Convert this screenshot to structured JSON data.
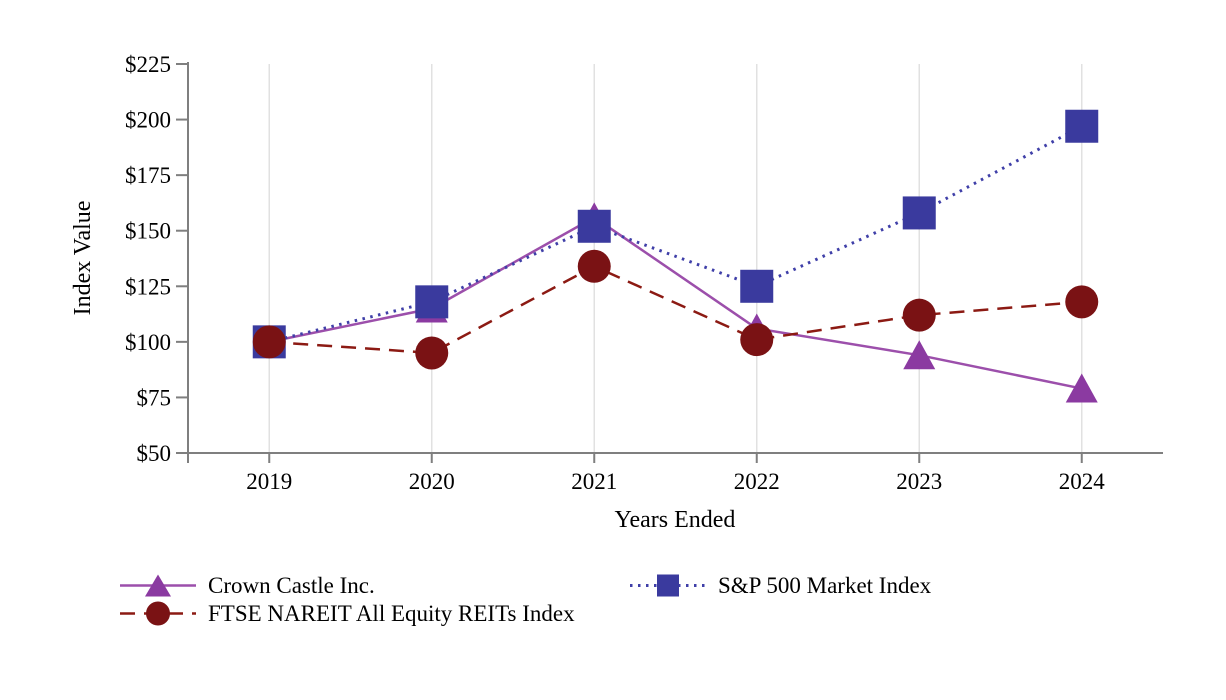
{
  "chart_data": {
    "type": "line",
    "title": "",
    "xlabel": "Years Ended",
    "ylabel": "Index Value",
    "categories": [
      "2019",
      "2020",
      "2021",
      "2022",
      "2023",
      "2024"
    ],
    "series": [
      {
        "name": "Crown Castle Inc.",
        "values": [
          100,
          115,
          156,
          106,
          94,
          79
        ],
        "marker": "triangle",
        "marker_color": "#8B3AA1",
        "line_color": "#9C4FAB",
        "line_style": "solid"
      },
      {
        "name": "S&P 500 Market Index",
        "values": [
          100,
          118,
          152,
          125,
          158,
          197
        ],
        "marker": "square",
        "marker_color": "#3A3A9E",
        "line_color": "#3F3FA8",
        "line_style": "dotted"
      },
      {
        "name": "FTSE NAREIT All Equity REITs Index",
        "values": [
          100,
          95,
          134,
          101,
          112,
          118
        ],
        "marker": "circle",
        "marker_color": "#7A1214",
        "line_color": "#8C1A13",
        "line_style": "dashed"
      }
    ],
    "ylim": [
      50,
      225
    ],
    "ytick_values": [
      225,
      200,
      175,
      150,
      125,
      100,
      75,
      50
    ],
    "ytick_labels": [
      "$225",
      "$200",
      "$175",
      "$150",
      "$125",
      "$100",
      "$75",
      "$50"
    ],
    "ytick_prefix": "$",
    "grid": "vertical-only",
    "gridline_color": "#E1E1E1",
    "axis_color": "#7F7F7F",
    "legend_position": "bottom-left",
    "legend_order_note": "row1: Crown Castle Inc. | S&P 500 Market Index; row2: FTSE NAREIT All Equity REITs Index"
  }
}
